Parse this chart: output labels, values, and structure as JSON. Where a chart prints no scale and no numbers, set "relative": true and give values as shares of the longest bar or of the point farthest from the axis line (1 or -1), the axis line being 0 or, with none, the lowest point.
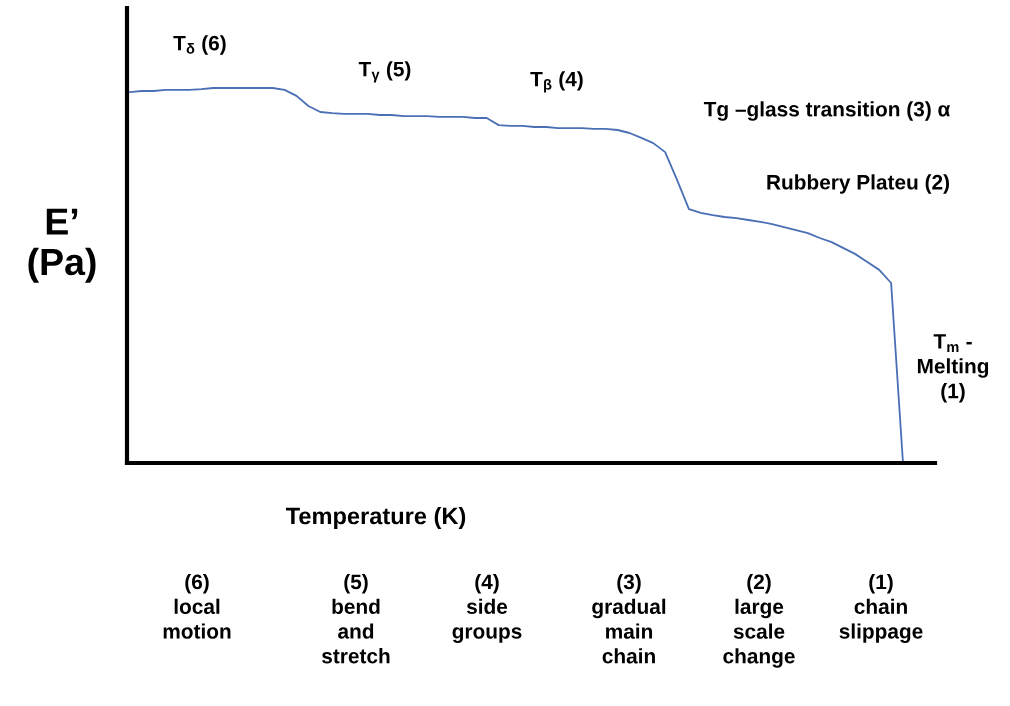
{
  "chart_data": {
    "type": "line",
    "relative": true,
    "xlabel": "Temperature (K)",
    "ylabel": "E’\n(Pa)",
    "categories": [
      null,
      null,
      null,
      null,
      null,
      null,
      null,
      null,
      null,
      null,
      null,
      null,
      null,
      null,
      null,
      null,
      null,
      null,
      null,
      null,
      null,
      null,
      null,
      null,
      null,
      null,
      null,
      null,
      null,
      null,
      null,
      null,
      null,
      null,
      null,
      null,
      null,
      null,
      null,
      null,
      null,
      null,
      null,
      null,
      null,
      null,
      null,
      null,
      null,
      null,
      null,
      null,
      null,
      null,
      null,
      null,
      null,
      null,
      null,
      null,
      null,
      null,
      null,
      null,
      null,
      null
    ],
    "series": [
      {
        "color": "#4a6fb5",
        "values": [
          0.989,
          0.992,
          0.992,
          0.995,
          0.995,
          0.995,
          0.997,
          1.0,
          1.0,
          1.0,
          1.0,
          1.0,
          1.0,
          0.995,
          0.979,
          0.952,
          0.936,
          0.933,
          0.931,
          0.931,
          0.931,
          0.928,
          0.928,
          0.925,
          0.925,
          0.925,
          0.923,
          0.923,
          0.923,
          0.92,
          0.92,
          0.901,
          0.899,
          0.899,
          0.896,
          0.896,
          0.893,
          0.893,
          0.893,
          0.891,
          0.891,
          0.888,
          0.88,
          0.867,
          0.853,
          0.829,
          0.755,
          0.677,
          0.667,
          0.661,
          0.656,
          0.653,
          0.648,
          0.643,
          0.637,
          0.629,
          0.621,
          0.613,
          0.6,
          0.589,
          0.573,
          0.557,
          0.536,
          0.515,
          0.48,
          0.0
        ]
      }
    ],
    "annotations": [
      "T$_{δ}$ (6)",
      "T$_{γ}$ (5)",
      "T$_{β}$ (4)",
      "Tg –glass transition (3) α",
      "Rubbery Plateu (2)",
      "T$_{m}$ -\nMelting\n(1)",
      "(6)\nlocal\nmotion",
      "(5)\nbend\nand\nstretch",
      "(4)\nside\ngroups",
      "(3)\ngradual\nmain\nchain",
      "(2)\nlarge\nscale\nchange",
      "(1)\nchain\nslippage"
    ]
  }
}
